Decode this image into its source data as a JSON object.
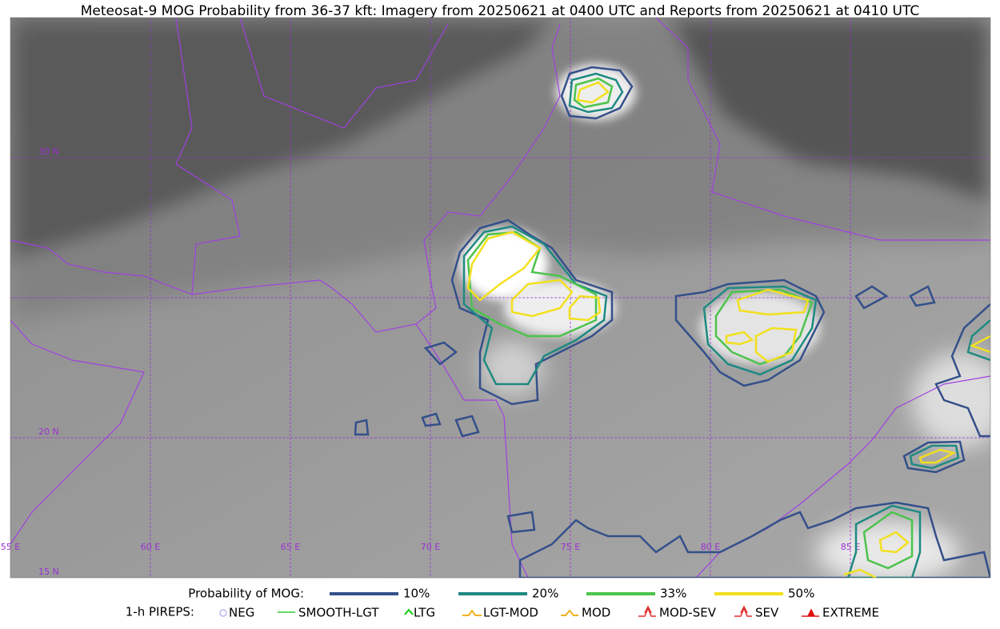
{
  "title": "Meteosat-9 MOG Probability from 36-37 kft: Imagery from 20250621 at 0400 UTC and Reports from 20250621 at 0410 UTC",
  "grid_labels": {
    "latitude": [
      "30 N",
      "20 N",
      "15 N"
    ],
    "longitude": [
      "55 E",
      "60 E",
      "65 E",
      "70 E",
      "75 E",
      "80 E",
      "85 E"
    ]
  },
  "legend": {
    "probability_label": "Probability of MOG:",
    "probability_levels": [
      {
        "label": "10%",
        "color": "#34508a"
      },
      {
        "label": "20%",
        "color": "#1e8a82"
      },
      {
        "label": "33%",
        "color": "#4cc34c"
      },
      {
        "label": "50%",
        "color": "#f2e01e"
      }
    ],
    "pireps_label": "1-h PIREPS:",
    "pireps": [
      {
        "label": "NEG",
        "color": "#b8b8f0"
      },
      {
        "label": "SMOOTH-LGT",
        "color": "#33cc33"
      },
      {
        "label": "LTG",
        "color": "#11cc11"
      },
      {
        "label": "LGT-MOD",
        "color": "#f0b020"
      },
      {
        "label": "MOD",
        "color": "#f0b020"
      },
      {
        "label": "MOD-SEV",
        "color": "#e03030"
      },
      {
        "label": "SEV",
        "color": "#e03030"
      },
      {
        "label": "EXTREME",
        "color": "#e01010"
      }
    ]
  }
}
